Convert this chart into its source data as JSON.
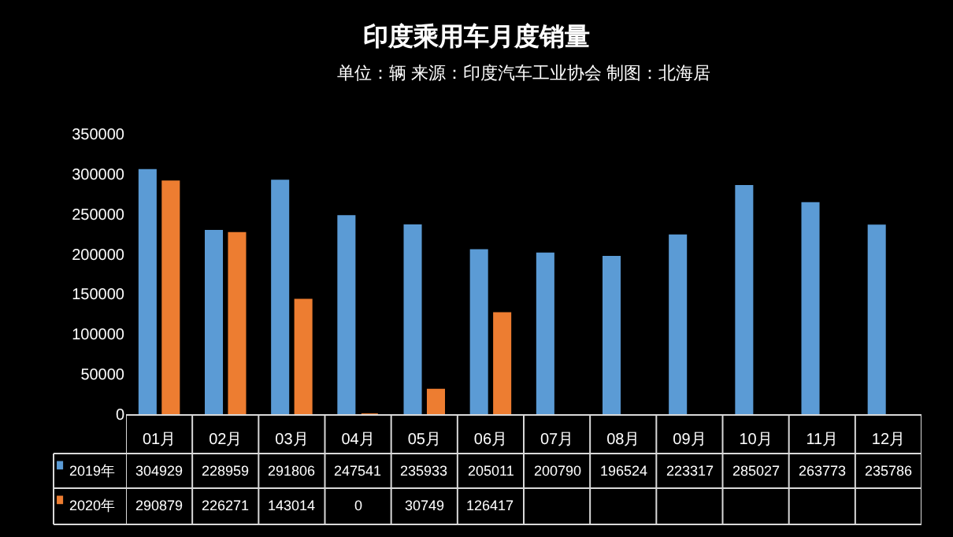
{
  "chart_data": {
    "type": "bar",
    "title": "印度乘用车月度销量",
    "subtitle": "单位：辆 来源：印度汽车工业协会 制图：北海居",
    "categories": [
      "01月",
      "02月",
      "03月",
      "04月",
      "05月",
      "06月",
      "07月",
      "08月",
      "09月",
      "10月",
      "11月",
      "12月"
    ],
    "series": [
      {
        "name": "2019年",
        "color": "#5b9bd5",
        "values": [
          304929,
          228959,
          291806,
          247541,
          235933,
          205011,
          200790,
          196524,
          223317,
          285027,
          263773,
          235786
        ]
      },
      {
        "name": "2020年",
        "color": "#ed7d31",
        "values": [
          290879,
          226271,
          143014,
          0,
          30749,
          126417,
          null,
          null,
          null,
          null,
          null,
          null
        ]
      }
    ],
    "ylim": [
      0,
      350000
    ],
    "yticks": [
      0,
      50000,
      100000,
      150000,
      200000,
      250000,
      300000,
      350000
    ],
    "grid": false,
    "data_labels": true,
    "legend": "bottom left"
  }
}
